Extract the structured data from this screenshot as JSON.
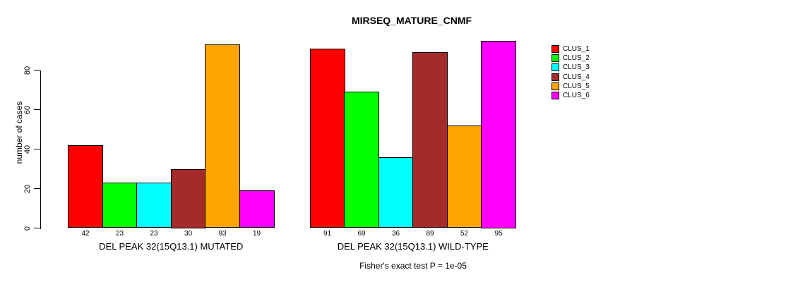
{
  "chart_data": {
    "type": "bar",
    "title": "MIRSEQ_MATURE_CNMF",
    "ylabel": "number of cases",
    "xlabel": "",
    "annotation": "Fisher's exact test P = 1e-05",
    "ylim": [
      0,
      97
    ],
    "yticks": [
      0,
      20,
      40,
      60,
      80
    ],
    "grid": false,
    "value_labels_shown": true,
    "categories": [
      "CLUS_1",
      "CLUS_2",
      "CLUS_3",
      "CLUS_4",
      "CLUS_5",
      "CLUS_6"
    ],
    "colors": [
      "#FF0000",
      "#00FF00",
      "#00FFFF",
      "#A52A2A",
      "#FFA500",
      "#FF00FF"
    ],
    "series": [
      {
        "name": "DEL PEAK 32(15Q13.1) MUTATED",
        "values": [
          42,
          23,
          23,
          30,
          93,
          19
        ]
      },
      {
        "name": "DEL PEAK 32(15Q13.1) WILD-TYPE",
        "values": [
          91,
          69,
          36,
          89,
          52,
          95
        ]
      }
    ],
    "legend": {
      "position": "top-right",
      "entries": [
        {
          "label": "CLUS_1",
          "color": "#FF0000"
        },
        {
          "label": "CLUS_2",
          "color": "#00FF00"
        },
        {
          "label": "CLUS_3",
          "color": "#00FFFF"
        },
        {
          "label": "CLUS_4",
          "color": "#A52A2A"
        },
        {
          "label": "CLUS_5",
          "color": "#FFA500"
        },
        {
          "label": "CLUS_6",
          "color": "#FF00FF"
        }
      ]
    }
  }
}
